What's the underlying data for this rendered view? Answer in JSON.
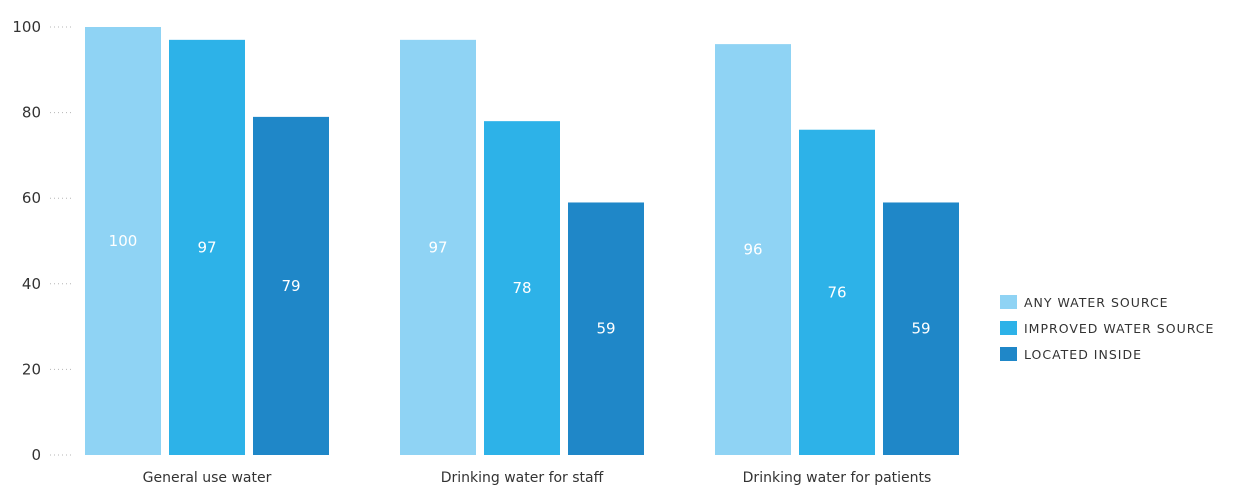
{
  "chart_data": {
    "type": "bar",
    "categories": [
      "General use water",
      "Drinking water for staff",
      "Drinking water for patients"
    ],
    "series": [
      {
        "name": "ANY WATER SOURCE",
        "values": [
          100,
          97,
          96
        ],
        "color": "#8fd3f4"
      },
      {
        "name": "IMPROVED WATER SOURCE",
        "values": [
          97,
          78,
          76
        ],
        "color": "#2db2e8"
      },
      {
        "name": "LOCATED INSIDE",
        "values": [
          79,
          59,
          59
        ],
        "color": "#1f87c8"
      }
    ],
    "title": "",
    "xlabel": "",
    "ylabel": "",
    "ylim": [
      0,
      100
    ],
    "yticks": [
      0,
      20,
      40,
      60,
      80,
      100
    ],
    "legend_position": "right",
    "grid": false
  }
}
